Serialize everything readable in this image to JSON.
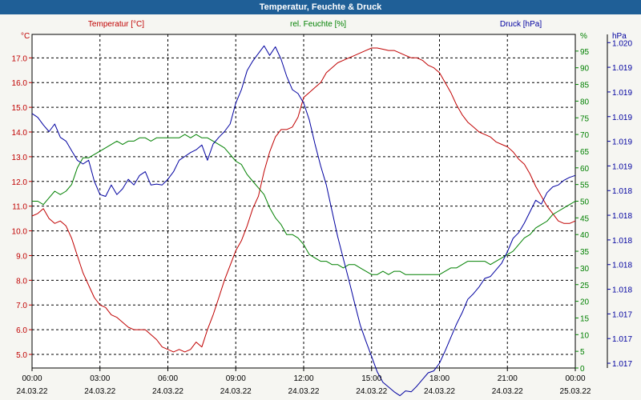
{
  "window": {
    "title": "Temperatur, Feuchte & Druck"
  },
  "chart_data": {
    "type": "line",
    "title": "Temperatur, Feuchte & Druck",
    "grid": true,
    "x_ticks": [
      {
        "hours": 0,
        "time": "00:00",
        "date": "24.03.22"
      },
      {
        "hours": 3,
        "time": "03:00",
        "date": "24.03.22"
      },
      {
        "hours": 6,
        "time": "06:00",
        "date": "24.03.22"
      },
      {
        "hours": 9,
        "time": "09:00",
        "date": "24.03.22"
      },
      {
        "hours": 12,
        "time": "12:00",
        "date": "24.03.22"
      },
      {
        "hours": 15,
        "time": "15:00",
        "date": "24.03.22"
      },
      {
        "hours": 18,
        "time": "18:00",
        "date": "24.03.22"
      },
      {
        "hours": 21,
        "time": "21:00",
        "date": "24.03.22"
      },
      {
        "hours": 24,
        "time": "00:00",
        "date": "25.03.22"
      }
    ],
    "axes": {
      "temperature": {
        "label": "Temperatur [°C]",
        "unit": "°C",
        "color": "#c00000",
        "ylim": [
          4.45,
          17.95
        ],
        "ticks": [
          "5.0",
          "6.0",
          "7.0",
          "8.0",
          "9.0",
          "10.0",
          "11.0",
          "12.0",
          "13.0",
          "14.0",
          "15.0",
          "16.0",
          "17.0"
        ]
      },
      "humidity": {
        "label": "rel. Feuchte [%]",
        "unit": "%",
        "color": "#008000",
        "ylim": [
          0,
          100
        ],
        "ticks": [
          "0",
          "5",
          "10",
          "15",
          "20",
          "25",
          "30",
          "35",
          "40",
          "45",
          "50",
          "55",
          "60",
          "65",
          "70",
          "75",
          "80",
          "85",
          "90",
          "95"
        ]
      },
      "pressure": {
        "label": "Druck [hPa]",
        "unit": "hPa",
        "color": "#0000a0",
        "ylim": [
          1016.7,
          1020.2
        ],
        "ticks": [
          "1.017",
          "1.017",
          "1.017",
          "1.018",
          "1.018",
          "1.018",
          "1.018",
          "1.018",
          "1.019",
          "1.019",
          "1.019",
          "1.019",
          "1.019",
          "1.020"
        ]
      }
    },
    "series": [
      {
        "name": "Temperatur [°C]",
        "axis": "temperature",
        "color": "#c00000",
        "x": [
          0,
          0.25,
          0.5,
          0.75,
          1,
          1.25,
          1.5,
          1.75,
          2,
          2.25,
          2.5,
          2.75,
          3,
          3.25,
          3.5,
          3.75,
          4,
          4.25,
          4.5,
          4.75,
          5,
          5.25,
          5.5,
          5.75,
          6,
          6.25,
          6.5,
          6.75,
          7,
          7.25,
          7.5,
          7.75,
          8,
          8.25,
          8.5,
          8.75,
          9,
          9.25,
          9.5,
          9.75,
          10,
          10.25,
          10.5,
          10.75,
          11,
          11.25,
          11.5,
          11.75,
          12,
          12.25,
          12.5,
          12.75,
          13,
          13.25,
          13.5,
          13.75,
          14,
          14.25,
          14.5,
          14.75,
          15,
          15.25,
          15.5,
          15.75,
          16,
          16.25,
          16.5,
          16.75,
          17,
          17.25,
          17.5,
          17.75,
          18,
          18.25,
          18.5,
          18.75,
          19,
          19.25,
          19.5,
          19.75,
          20,
          20.25,
          20.5,
          20.75,
          21,
          21.25,
          21.5,
          21.75,
          22,
          22.25,
          22.5,
          22.75,
          23,
          23.25,
          23.5,
          23.75,
          24
        ],
        "values": [
          10.6,
          10.7,
          10.9,
          10.5,
          10.3,
          10.4,
          10.2,
          9.7,
          9.0,
          8.3,
          7.8,
          7.3,
          7.0,
          6.9,
          6.6,
          6.5,
          6.3,
          6.1,
          6.0,
          6.0,
          6.0,
          5.8,
          5.6,
          5.3,
          5.2,
          5.1,
          5.2,
          5.1,
          5.2,
          5.5,
          5.3,
          6.0,
          6.6,
          7.3,
          8.0,
          8.6,
          9.2,
          9.6,
          10.2,
          10.9,
          11.4,
          12.4,
          13.2,
          13.8,
          14.1,
          14.1,
          14.2,
          14.6,
          15.4,
          15.6,
          15.8,
          16.0,
          16.4,
          16.6,
          16.8,
          16.9,
          17.0,
          17.1,
          17.2,
          17.3,
          17.4,
          17.4,
          17.35,
          17.3,
          17.3,
          17.2,
          17.1,
          17.0,
          17.0,
          16.9,
          16.7,
          16.6,
          16.4,
          16.0,
          15.6,
          15.1,
          14.7,
          14.4,
          14.2,
          14.0,
          13.9,
          13.8,
          13.6,
          13.5,
          13.4,
          13.2,
          12.9,
          12.7,
          12.3,
          11.8,
          11.4,
          11.0,
          10.7,
          10.4,
          10.3,
          10.3,
          10.4
        ],
        "legend_position": "top-left"
      },
      {
        "name": "rel. Feuchte [%]",
        "axis": "humidity",
        "color": "#008000",
        "x": [
          0,
          0.25,
          0.5,
          0.75,
          1,
          1.25,
          1.5,
          1.75,
          2,
          2.25,
          2.5,
          2.75,
          3,
          3.25,
          3.5,
          3.75,
          4,
          4.25,
          4.5,
          4.75,
          5,
          5.25,
          5.5,
          5.75,
          6,
          6.25,
          6.5,
          6.75,
          7,
          7.25,
          7.5,
          7.75,
          8,
          8.25,
          8.5,
          8.75,
          9,
          9.25,
          9.5,
          9.75,
          10,
          10.25,
          10.5,
          10.75,
          11,
          11.25,
          11.5,
          11.75,
          12,
          12.25,
          12.5,
          12.75,
          13,
          13.25,
          13.5,
          13.75,
          14,
          14.25,
          14.5,
          14.75,
          15,
          15.25,
          15.5,
          15.75,
          16,
          16.25,
          16.5,
          16.75,
          17,
          17.25,
          17.5,
          17.75,
          18,
          18.25,
          18.5,
          18.75,
          19,
          19.25,
          19.5,
          19.75,
          20,
          20.25,
          20.5,
          20.75,
          21,
          21.25,
          21.5,
          21.75,
          22,
          22.25,
          22.5,
          22.75,
          23,
          23.25,
          23.5,
          23.75,
          24
        ],
        "values": [
          50,
          50,
          49,
          51,
          53,
          52,
          53,
          55,
          60,
          63,
          63,
          64,
          65,
          66,
          67,
          68,
          67,
          68,
          68,
          69,
          69,
          68,
          69,
          69,
          69,
          69,
          69,
          70,
          69,
          70,
          69,
          69,
          68,
          67,
          66,
          64,
          62,
          61,
          58,
          56,
          54,
          52,
          48,
          45,
          43,
          40,
          40,
          39,
          37,
          34,
          33,
          32,
          32,
          31,
          31,
          30,
          31,
          31,
          30,
          29,
          28,
          28,
          29,
          28,
          29,
          29,
          28,
          28,
          28,
          28,
          28,
          28,
          28,
          29,
          30,
          30,
          31,
          32,
          32,
          32,
          32,
          31,
          32,
          33,
          34,
          35,
          37,
          39,
          40,
          42,
          43,
          44,
          46,
          47,
          48,
          49,
          50
        ],
        "legend_position": "top-center"
      },
      {
        "name": "Druck [hPa]",
        "axis": "pressure",
        "color": "#0000a0",
        "x": [
          0,
          0.25,
          0.5,
          0.75,
          1,
          1.25,
          1.5,
          1.75,
          2,
          2.25,
          2.5,
          2.75,
          3,
          3.25,
          3.5,
          3.75,
          4,
          4.25,
          4.5,
          4.75,
          5,
          5.25,
          5.5,
          5.75,
          6,
          6.25,
          6.5,
          6.75,
          7,
          7.25,
          7.5,
          7.75,
          8,
          8.25,
          8.5,
          8.75,
          9,
          9.25,
          9.5,
          9.75,
          10,
          10.25,
          10.5,
          10.75,
          11,
          11.25,
          11.5,
          11.75,
          12,
          12.25,
          12.5,
          12.75,
          13,
          13.25,
          13.5,
          13.75,
          14,
          14.25,
          14.5,
          14.75,
          15,
          15.25,
          15.5,
          15.75,
          16,
          16.25,
          16.5,
          16.75,
          17,
          17.25,
          17.5,
          17.75,
          18,
          18.25,
          18.5,
          18.75,
          19,
          19.25,
          19.5,
          19.75,
          20,
          20.25,
          20.5,
          20.75,
          21,
          21.25,
          21.5,
          21.75,
          22,
          22.25,
          22.5,
          22.75,
          23,
          23.25,
          23.5,
          23.75,
          24
        ],
        "values": [
          1019.37,
          1019.33,
          1019.25,
          1019.18,
          1019.26,
          1019.12,
          1019.08,
          1018.98,
          1018.88,
          1018.84,
          1018.88,
          1018.66,
          1018.52,
          1018.5,
          1018.62,
          1018.52,
          1018.58,
          1018.68,
          1018.62,
          1018.72,
          1018.76,
          1018.62,
          1018.63,
          1018.62,
          1018.68,
          1018.76,
          1018.88,
          1018.92,
          1018.96,
          1018.99,
          1019.04,
          1018.88,
          1019.05,
          1019.12,
          1019.18,
          1019.26,
          1019.48,
          1019.62,
          1019.82,
          1019.92,
          1020.0,
          1020.08,
          1019.98,
          1020.07,
          1019.94,
          1019.76,
          1019.62,
          1019.58,
          1019.48,
          1019.3,
          1019.05,
          1018.82,
          1018.62,
          1018.35,
          1018.08,
          1017.85,
          1017.62,
          1017.38,
          1017.15,
          1016.98,
          1016.82,
          1016.66,
          1016.55,
          1016.5,
          1016.45,
          1016.41,
          1016.46,
          1016.45,
          1016.51,
          1016.58,
          1016.65,
          1016.67,
          1016.75,
          1016.88,
          1017.02,
          1017.16,
          1017.28,
          1017.42,
          1017.48,
          1017.55,
          1017.64,
          1017.66,
          1017.73,
          1017.8,
          1017.92,
          1018.06,
          1018.12,
          1018.22,
          1018.34,
          1018.46,
          1018.42,
          1018.54,
          1018.6,
          1018.62,
          1018.67,
          1018.7,
          1018.72
        ],
        "legend_position": "top-right"
      }
    ]
  }
}
